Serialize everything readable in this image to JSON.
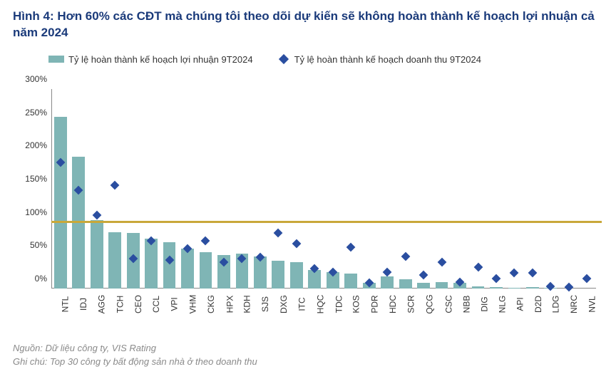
{
  "title": "Hình 4: Hơn 60% các CĐT mà chúng tôi theo dõi dự kiến sẽ không hoàn thành kế hoạch lợi nhuận cả năm 2024",
  "legend": {
    "bar": "Tỷ lệ hoàn thành kế hoạch lợi nhuận 9T2024",
    "diamond": "Tỷ lệ hoàn thành kế hoạch doanh thu 9T2024"
  },
  "footer": {
    "source": "Nguồn: Dữ liệu công ty, VIS Rating",
    "note": "Ghi chú: Top 30 công ty bất động sản nhà ở theo doanh thu"
  },
  "chart": {
    "type": "bar+scatter",
    "ylim": [
      0,
      300
    ],
    "ytick_step": 50,
    "ytick_suffix": "%",
    "threshold_value": 100,
    "threshold_color": "#c9a83a",
    "bar_color": "#7fb5b5",
    "diamond_color": "#2a4ea0",
    "background_color": "#ffffff",
    "axis_color": "#888888",
    "label_color": "#333333",
    "categories": [
      "NTL",
      "IDJ",
      "AGG",
      "TCH",
      "CEO",
      "CCL",
      "VPI",
      "VHM",
      "CKG",
      "HPX",
      "KDH",
      "SJS",
      "DXG",
      "ITC",
      "HQC",
      "TDC",
      "KOS",
      "PDR",
      "HDC",
      "SCR",
      "QCG",
      "CSC",
      "NBB",
      "DIG",
      "NLG",
      "API",
      "D2D",
      "LDG",
      "NRC",
      "NVL"
    ],
    "bar_values": [
      258,
      198,
      103,
      85,
      83,
      75,
      70,
      60,
      55,
      50,
      52,
      48,
      42,
      40,
      28,
      24,
      22,
      8,
      18,
      14,
      8,
      9,
      8,
      3,
      2,
      1,
      2,
      1,
      0,
      0
    ],
    "diamond_values": [
      190,
      148,
      110,
      155,
      45,
      72,
      43,
      60,
      72,
      40,
      45,
      47,
      83,
      67,
      30,
      25,
      62,
      8,
      24,
      48,
      20,
      40,
      10,
      32,
      15,
      23,
      23,
      3,
      2,
      15
    ]
  }
}
